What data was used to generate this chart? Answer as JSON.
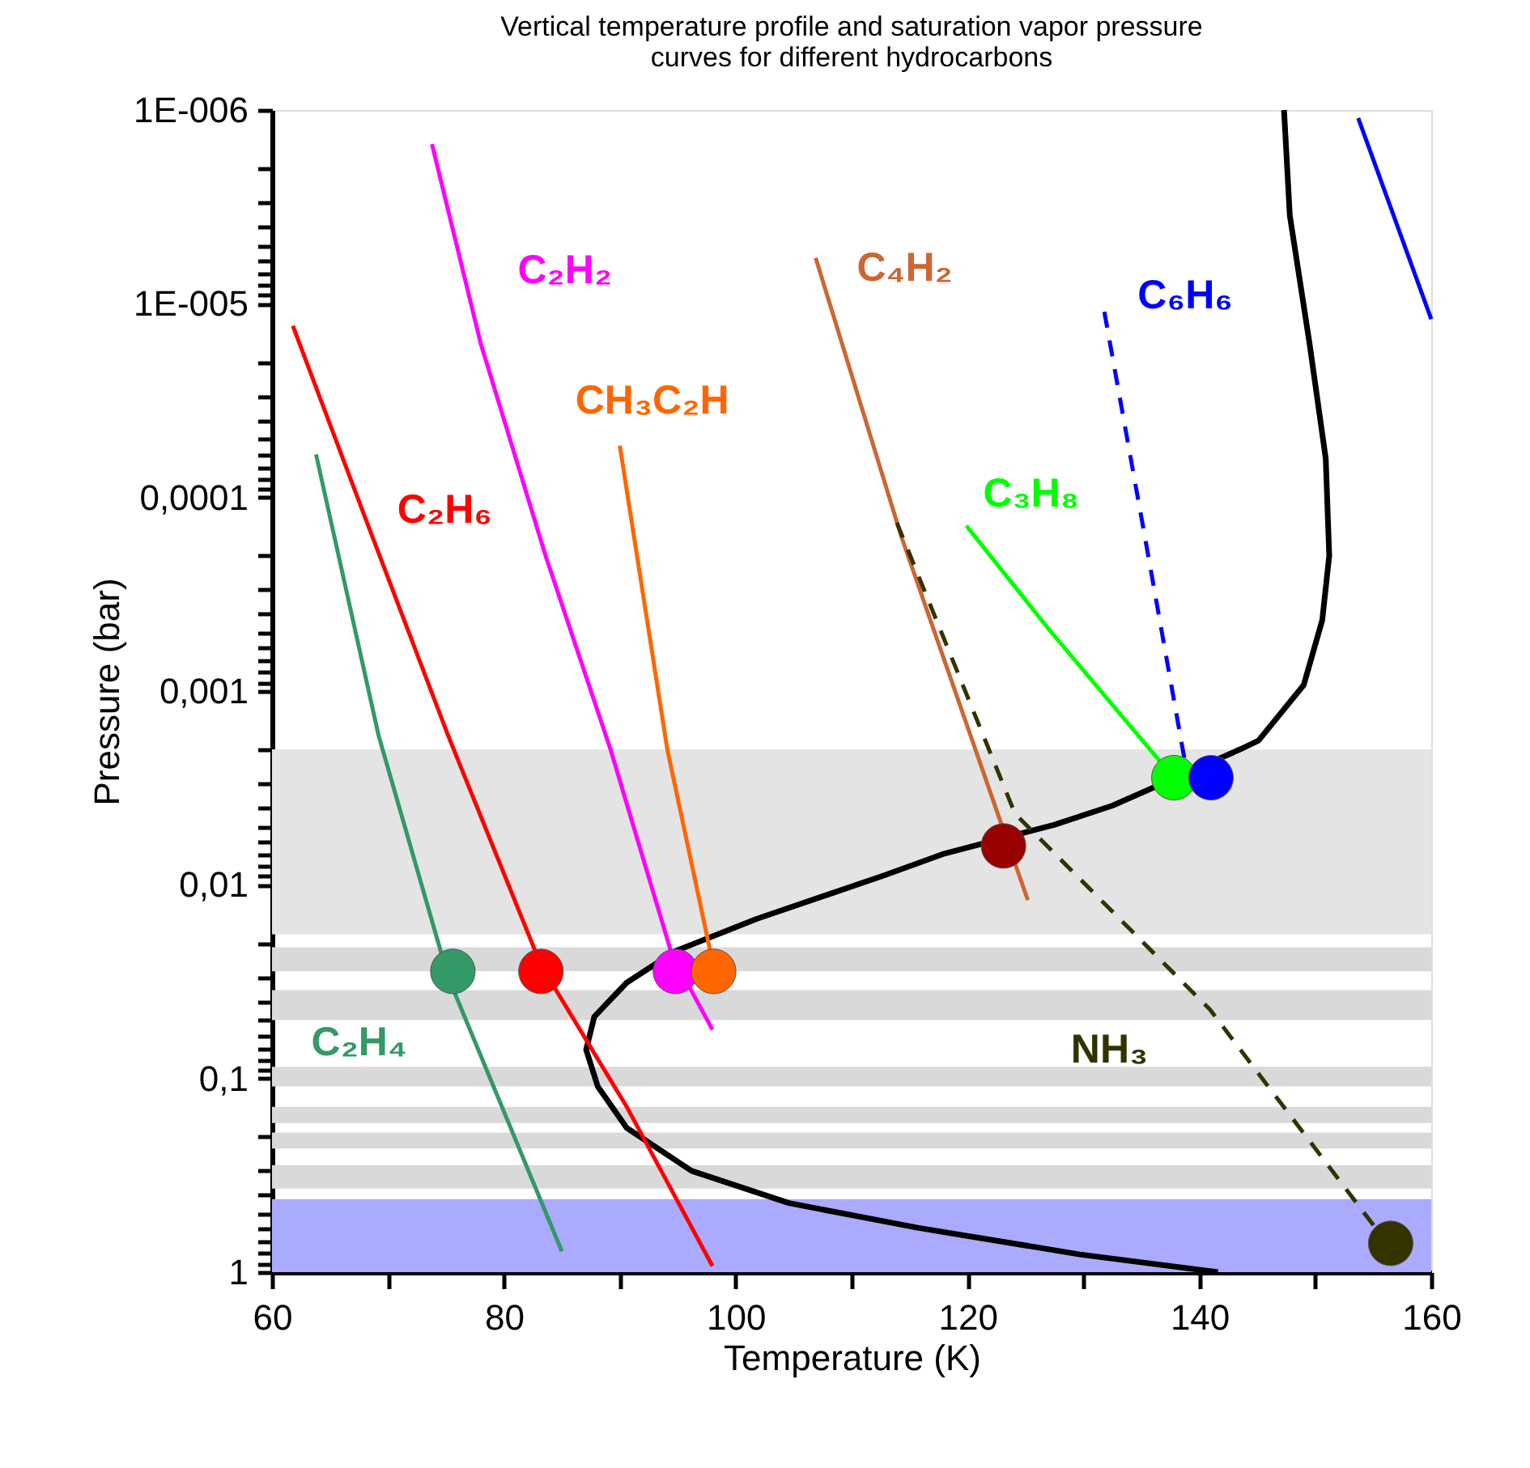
{
  "chart_data": {
    "type": "line",
    "title": "Vertical temperature profile and saturation vapor pressure\ncurves for different hydrocarbons",
    "xlabel": "Temperature (K)",
    "ylabel": "Pressure (bar)",
    "log": "y",
    "grid": false,
    "xlim": [
      60,
      160
    ],
    "xticks": [
      60,
      {
        "value": 70,
        "label": null
      },
      80,
      {
        "value": 90,
        "label": null
      },
      100,
      {
        "value": 110,
        "label": null
      },
      120,
      {
        "value": 130,
        "label": null
      },
      140,
      {
        "value": 150,
        "label": null
      },
      160
    ],
    "ylim": [
      1,
      1e-06
    ],
    "yticks": [
      {
        "value": 1e-06,
        "label": "1E-006"
      },
      {
        "value": 1e-05,
        "label": "1E-005"
      },
      {
        "value": 0.0001,
        "label": "0,0001"
      },
      {
        "value": 0.001,
        "label": "0,001"
      },
      {
        "value": 0.01,
        "label": "0,01"
      },
      {
        "value": 0.1,
        "label": "0,1"
      },
      1,
      {
        "value": 2e-06,
        "label": null
      },
      {
        "value": 3e-06,
        "label": null
      },
      {
        "value": 4e-06,
        "label": null
      },
      {
        "value": 5e-06,
        "label": null
      },
      {
        "value": 6e-06,
        "label": null
      },
      {
        "value": 7e-06,
        "label": null
      },
      {
        "value": 8e-06,
        "label": null
      },
      {
        "value": 9e-06,
        "label": null
      },
      {
        "value": 2e-05,
        "label": null
      },
      {
        "value": 3e-05,
        "label": null
      },
      {
        "value": 4e-05,
        "label": null
      },
      {
        "value": 5e-05,
        "label": null
      },
      {
        "value": 6e-05,
        "label": null
      },
      {
        "value": 7e-05,
        "label": null
      },
      {
        "value": 8e-05,
        "label": null
      },
      {
        "value": 9e-05,
        "label": null
      },
      {
        "value": 0.0002,
        "label": null
      },
      {
        "value": 0.0003,
        "label": null
      },
      {
        "value": 0.0004,
        "label": null
      },
      {
        "value": 0.0005,
        "label": null
      },
      {
        "value": 0.0006,
        "label": null
      },
      {
        "value": 0.0007,
        "label": null
      },
      {
        "value": 0.0008,
        "label": null
      },
      {
        "value": 0.0009,
        "label": null
      },
      {
        "value": 0.002,
        "label": null
      },
      {
        "value": 0.003,
        "label": null
      },
      {
        "value": 0.004,
        "label": null
      },
      {
        "value": 0.005,
        "label": null
      },
      {
        "value": 0.006,
        "label": null
      },
      {
        "value": 0.007,
        "label": null
      },
      {
        "value": 0.008,
        "label": null
      },
      {
        "value": 0.009,
        "label": null
      },
      {
        "value": 0.02,
        "label": null
      },
      {
        "value": 0.03,
        "label": null
      },
      {
        "value": 0.04,
        "label": null
      },
      {
        "value": 0.05,
        "label": null
      },
      {
        "value": 0.06,
        "label": null
      },
      {
        "value": 0.07,
        "label": null
      },
      {
        "value": 0.08,
        "label": null
      },
      {
        "value": 0.09,
        "label": null
      },
      {
        "value": 0.2,
        "label": null
      },
      {
        "value": 0.3,
        "label": null
      },
      {
        "value": 0.4,
        "label": null
      },
      {
        "value": 0.5,
        "label": null
      },
      {
        "value": 0.6,
        "label": null
      },
      {
        "value": 0.7,
        "label": null
      },
      {
        "value": 0.8,
        "label": null
      },
      {
        "value": 0.9,
        "label": null
      }
    ],
    "bands": [
      {
        "axis": "y",
        "from": 0.002,
        "to": 0.018,
        "color": "#e4e4e4"
      },
      {
        "axis": "y",
        "from": 0.021,
        "to": 0.028,
        "color": "#d9d9d9"
      },
      {
        "axis": "y",
        "from": 0.035,
        "to": 0.05,
        "color": "#d9d9d9"
      },
      {
        "axis": "y",
        "from": 0.087,
        "to": 0.11,
        "color": "#d9d9d9"
      },
      {
        "axis": "y",
        "from": 0.14,
        "to": 0.17,
        "color": "#d9d9d9"
      },
      {
        "axis": "y",
        "from": 0.19,
        "to": 0.23,
        "color": "#d9d9d9"
      },
      {
        "axis": "y",
        "from": 0.28,
        "to": 0.37,
        "color": "#d9d9d9"
      },
      {
        "axis": "y",
        "from": 0.42,
        "to": 1,
        "color": "#aaaaff"
      }
    ],
    "series": [
      {
        "color": "#000000",
        "x": [
          147.3,
          147.8,
          149.5,
          150.9,
          151.2,
          150.6,
          149.0,
          145.1,
          143.5,
          132.5,
          127.5,
          118.0,
          112.9,
          101.8,
          94.8,
          90.6,
          87.8,
          87.1,
          88.1,
          90.6,
          96.2,
          104.6,
          115.7,
          129.7,
          141.6
        ],
        "values": [
          1e-06,
          3.5e-06,
          1.6e-05,
          6.3e-05,
          0.0002,
          0.00043,
          0.00093,
          0.0018,
          0.002,
          0.0039,
          0.0049,
          0.0069,
          0.0089,
          0.015,
          0.022,
          0.032,
          0.048,
          0.071,
          0.11,
          0.18,
          0.3,
          0.44,
          0.59,
          0.81,
          1
        ]
      },
      {
        "name": "C₂H₄",
        "color": "#339966",
        "x": [
          63.8,
          69.2,
          75.2,
          85.0
        ],
        "values": [
          6e-05,
          0.0017,
          0.03,
          0.78
        ]
      },
      {
        "name": "C₂H₆",
        "color": "#ff0000",
        "x": [
          61.8,
          68.2,
          75.2,
          83.2,
          90.6,
          98.0
        ],
        "values": [
          1.3e-05,
          0.000135,
          0.0017,
          0.026,
          0.14,
          0.93
        ]
      },
      {
        "name": "C₂H₂",
        "color": "#ff00ff",
        "x": [
          73.8,
          78.0,
          83.6,
          89.2,
          94.5,
          98.0
        ],
        "values": [
          1.5e-06,
          1.6e-05,
          0.0002,
          0.002,
          0.023,
          0.056
        ]
      },
      {
        "name": "CH₃C₂H",
        "color": "#ff6600",
        "x": [
          90.0,
          94.1,
          98.0
        ],
        "values": [
          5.4e-05,
          0.002,
          0.025
        ]
      },
      {
        "name": "C₄H₂",
        "color": "#cc6633",
        "x": [
          106.9,
          114.3,
          125.2
        ],
        "values": [
          5.8e-06,
          0.00016,
          0.012
        ]
      },
      {
        "name": "C₃H₈",
        "color": "#00ff00",
        "x": [
          119.9,
          126.9,
          137.8
        ],
        "values": [
          0.00014,
          0.00047,
          0.0028
        ]
      },
      {
        "name": "C₆H₆",
        "color": "#0000ff",
        "line_style": "dashed",
        "x": [
          131.8,
          135.3,
          138.8
        ],
        "values": [
          1.1e-05,
          0.00016,
          0.0024
        ]
      },
      {
        "color": "#0000ff",
        "x": [
          153.7,
          160
        ],
        "values": [
          1.1e-06,
          1.2e-05
        ]
      },
      {
        "name": "NH₃",
        "color": "#333300",
        "line_style": "dashed",
        "x": [
          113.9,
          124.1,
          140.9,
          156.2
        ],
        "values": [
          0.000135,
          0.0043,
          0.044,
          0.71
        ]
      },
      {
        "type": "scatter",
        "marker": "circle",
        "x": [
          75.6,
          83.2,
          94.8,
          98.1,
          123.1,
          137.8,
          141.0,
          156.5
        ],
        "values": [
          0.028,
          0.028,
          0.028,
          0.028,
          0.0063,
          0.0028,
          0.0028,
          0.71
        ],
        "colors": [
          "#339966",
          "#ff0000",
          "#ff00ff",
          "#ff6600",
          "#990000",
          "#00ff00",
          "#0000ff",
          "#333300"
        ]
      }
    ]
  }
}
